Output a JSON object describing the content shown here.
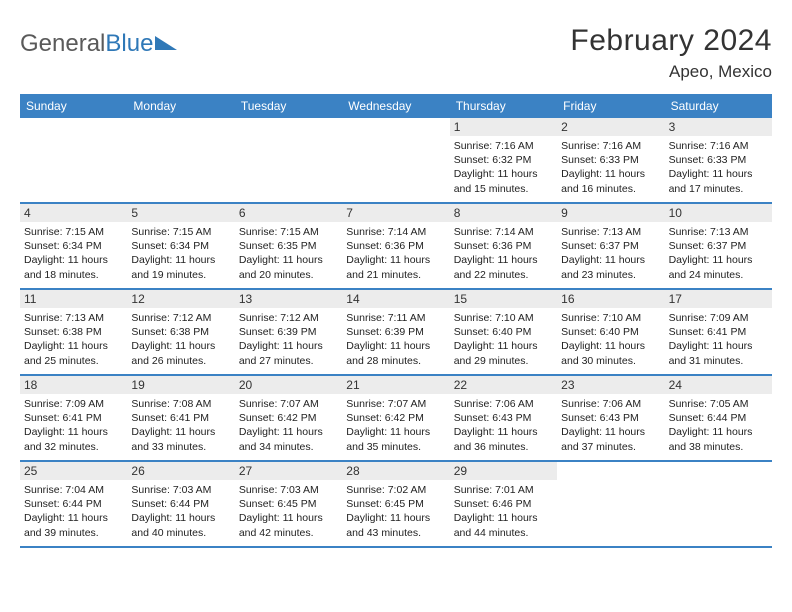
{
  "brand": {
    "part1": "General",
    "part2": "Blue"
  },
  "title": "February 2024",
  "location": "Apeo, Mexico",
  "colors": {
    "header_bg": "#3b82c4",
    "rule": "#3b82c4",
    "daynum_bg": "#ececec",
    "text": "#222222",
    "title_text": "#333333",
    "logo_gray": "#5a5a5a",
    "logo_blue": "#2f78b7",
    "page_bg": "#ffffff"
  },
  "typography": {
    "title_pt": 30,
    "location_pt": 17,
    "dayheader_pt": 12,
    "daynum_pt": 12,
    "body_pt": 10.5
  },
  "day_headers": [
    "Sunday",
    "Monday",
    "Tuesday",
    "Wednesday",
    "Thursday",
    "Friday",
    "Saturday"
  ],
  "weeks": [
    [
      {
        "blank": true
      },
      {
        "blank": true
      },
      {
        "blank": true
      },
      {
        "blank": true
      },
      {
        "num": "1",
        "sunrise": "Sunrise: 7:16 AM",
        "sunset": "Sunset: 6:32 PM",
        "daylight": "Daylight: 11 hours and 15 minutes."
      },
      {
        "num": "2",
        "sunrise": "Sunrise: 7:16 AM",
        "sunset": "Sunset: 6:33 PM",
        "daylight": "Daylight: 11 hours and 16 minutes."
      },
      {
        "num": "3",
        "sunrise": "Sunrise: 7:16 AM",
        "sunset": "Sunset: 6:33 PM",
        "daylight": "Daylight: 11 hours and 17 minutes."
      }
    ],
    [
      {
        "num": "4",
        "sunrise": "Sunrise: 7:15 AM",
        "sunset": "Sunset: 6:34 PM",
        "daylight": "Daylight: 11 hours and 18 minutes."
      },
      {
        "num": "5",
        "sunrise": "Sunrise: 7:15 AM",
        "sunset": "Sunset: 6:34 PM",
        "daylight": "Daylight: 11 hours and 19 minutes."
      },
      {
        "num": "6",
        "sunrise": "Sunrise: 7:15 AM",
        "sunset": "Sunset: 6:35 PM",
        "daylight": "Daylight: 11 hours and 20 minutes."
      },
      {
        "num": "7",
        "sunrise": "Sunrise: 7:14 AM",
        "sunset": "Sunset: 6:36 PM",
        "daylight": "Daylight: 11 hours and 21 minutes."
      },
      {
        "num": "8",
        "sunrise": "Sunrise: 7:14 AM",
        "sunset": "Sunset: 6:36 PM",
        "daylight": "Daylight: 11 hours and 22 minutes."
      },
      {
        "num": "9",
        "sunrise": "Sunrise: 7:13 AM",
        "sunset": "Sunset: 6:37 PM",
        "daylight": "Daylight: 11 hours and 23 minutes."
      },
      {
        "num": "10",
        "sunrise": "Sunrise: 7:13 AM",
        "sunset": "Sunset: 6:37 PM",
        "daylight": "Daylight: 11 hours and 24 minutes."
      }
    ],
    [
      {
        "num": "11",
        "sunrise": "Sunrise: 7:13 AM",
        "sunset": "Sunset: 6:38 PM",
        "daylight": "Daylight: 11 hours and 25 minutes."
      },
      {
        "num": "12",
        "sunrise": "Sunrise: 7:12 AM",
        "sunset": "Sunset: 6:38 PM",
        "daylight": "Daylight: 11 hours and 26 minutes."
      },
      {
        "num": "13",
        "sunrise": "Sunrise: 7:12 AM",
        "sunset": "Sunset: 6:39 PM",
        "daylight": "Daylight: 11 hours and 27 minutes."
      },
      {
        "num": "14",
        "sunrise": "Sunrise: 7:11 AM",
        "sunset": "Sunset: 6:39 PM",
        "daylight": "Daylight: 11 hours and 28 minutes."
      },
      {
        "num": "15",
        "sunrise": "Sunrise: 7:10 AM",
        "sunset": "Sunset: 6:40 PM",
        "daylight": "Daylight: 11 hours and 29 minutes."
      },
      {
        "num": "16",
        "sunrise": "Sunrise: 7:10 AM",
        "sunset": "Sunset: 6:40 PM",
        "daylight": "Daylight: 11 hours and 30 minutes."
      },
      {
        "num": "17",
        "sunrise": "Sunrise: 7:09 AM",
        "sunset": "Sunset: 6:41 PM",
        "daylight": "Daylight: 11 hours and 31 minutes."
      }
    ],
    [
      {
        "num": "18",
        "sunrise": "Sunrise: 7:09 AM",
        "sunset": "Sunset: 6:41 PM",
        "daylight": "Daylight: 11 hours and 32 minutes."
      },
      {
        "num": "19",
        "sunrise": "Sunrise: 7:08 AM",
        "sunset": "Sunset: 6:41 PM",
        "daylight": "Daylight: 11 hours and 33 minutes."
      },
      {
        "num": "20",
        "sunrise": "Sunrise: 7:07 AM",
        "sunset": "Sunset: 6:42 PM",
        "daylight": "Daylight: 11 hours and 34 minutes."
      },
      {
        "num": "21",
        "sunrise": "Sunrise: 7:07 AM",
        "sunset": "Sunset: 6:42 PM",
        "daylight": "Daylight: 11 hours and 35 minutes."
      },
      {
        "num": "22",
        "sunrise": "Sunrise: 7:06 AM",
        "sunset": "Sunset: 6:43 PM",
        "daylight": "Daylight: 11 hours and 36 minutes."
      },
      {
        "num": "23",
        "sunrise": "Sunrise: 7:06 AM",
        "sunset": "Sunset: 6:43 PM",
        "daylight": "Daylight: 11 hours and 37 minutes."
      },
      {
        "num": "24",
        "sunrise": "Sunrise: 7:05 AM",
        "sunset": "Sunset: 6:44 PM",
        "daylight": "Daylight: 11 hours and 38 minutes."
      }
    ],
    [
      {
        "num": "25",
        "sunrise": "Sunrise: 7:04 AM",
        "sunset": "Sunset: 6:44 PM",
        "daylight": "Daylight: 11 hours and 39 minutes."
      },
      {
        "num": "26",
        "sunrise": "Sunrise: 7:03 AM",
        "sunset": "Sunset: 6:44 PM",
        "daylight": "Daylight: 11 hours and 40 minutes."
      },
      {
        "num": "27",
        "sunrise": "Sunrise: 7:03 AM",
        "sunset": "Sunset: 6:45 PM",
        "daylight": "Daylight: 11 hours and 42 minutes."
      },
      {
        "num": "28",
        "sunrise": "Sunrise: 7:02 AM",
        "sunset": "Sunset: 6:45 PM",
        "daylight": "Daylight: 11 hours and 43 minutes."
      },
      {
        "num": "29",
        "sunrise": "Sunrise: 7:01 AM",
        "sunset": "Sunset: 6:46 PM",
        "daylight": "Daylight: 11 hours and 44 minutes."
      },
      {
        "blank": true
      },
      {
        "blank": true
      }
    ]
  ]
}
